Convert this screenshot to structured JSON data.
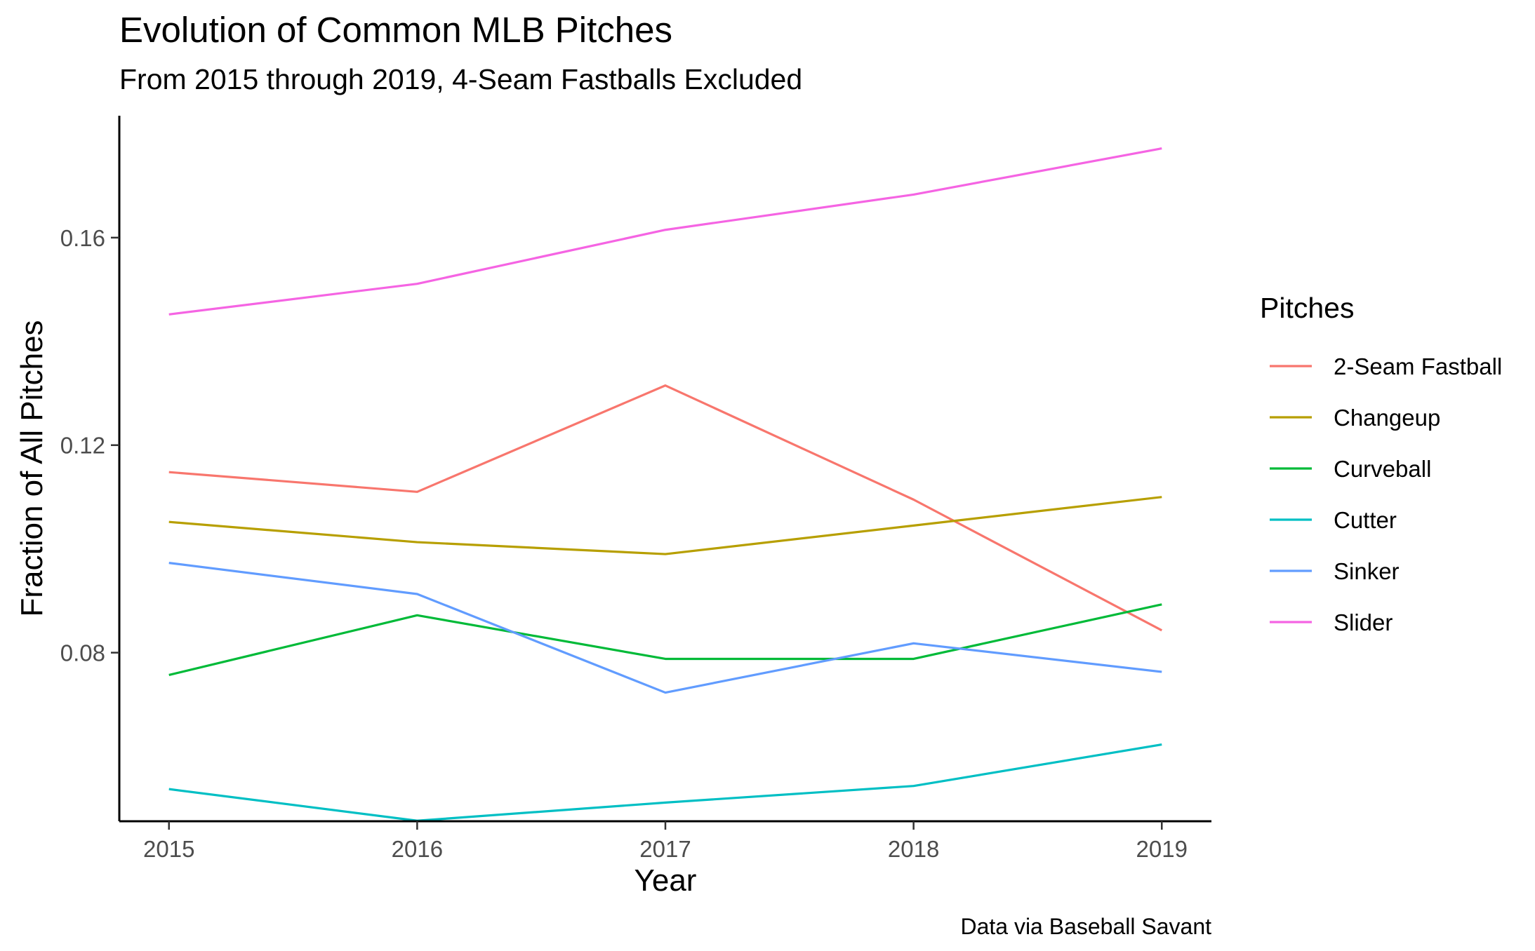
{
  "chart_data": {
    "type": "line",
    "title": "Evolution of Common MLB Pitches",
    "subtitle": "From 2015 through 2019, 4-Seam Fastballs Excluded",
    "xlabel": "Year",
    "ylabel": "Fraction of All Pitches",
    "caption": "Data via Baseball Savant",
    "x": [
      2015,
      2016,
      2017,
      2018,
      2019
    ],
    "x_ticks": [
      "2015",
      "2016",
      "2017",
      "2018",
      "2019"
    ],
    "y_ticks": [
      0.08,
      0.12,
      0.16
    ],
    "y_tick_labels": [
      "0.08",
      "0.12",
      "0.16"
    ],
    "xlim": [
      2014.8,
      2019.2
    ],
    "ylim": [
      0.0475,
      0.1835
    ],
    "grid": false,
    "legend": {
      "title": "Pitches",
      "position": "right"
    },
    "series": [
      {
        "name": "2-Seam Fastball",
        "color": "#F8766D",
        "values": [
          0.1148,
          0.111,
          0.1315,
          0.1095,
          0.0843
        ]
      },
      {
        "name": "Changeup",
        "color": "#B79F00",
        "values": [
          0.1052,
          0.1013,
          0.099,
          0.1045,
          0.11
        ]
      },
      {
        "name": "Curveball",
        "color": "#00BA38",
        "values": [
          0.0757,
          0.0872,
          0.0788,
          0.0788,
          0.0893
        ]
      },
      {
        "name": "Cutter",
        "color": "#00BFC4",
        "values": [
          0.0537,
          0.0476,
          0.0511,
          0.0543,
          0.0623
        ]
      },
      {
        "name": "Sinker",
        "color": "#619CFF",
        "values": [
          0.0973,
          0.0913,
          0.0723,
          0.0818,
          0.0763
        ]
      },
      {
        "name": "Slider",
        "color": "#F564E3",
        "values": [
          0.1452,
          0.1511,
          0.1615,
          0.1683,
          0.1772
        ]
      }
    ]
  }
}
